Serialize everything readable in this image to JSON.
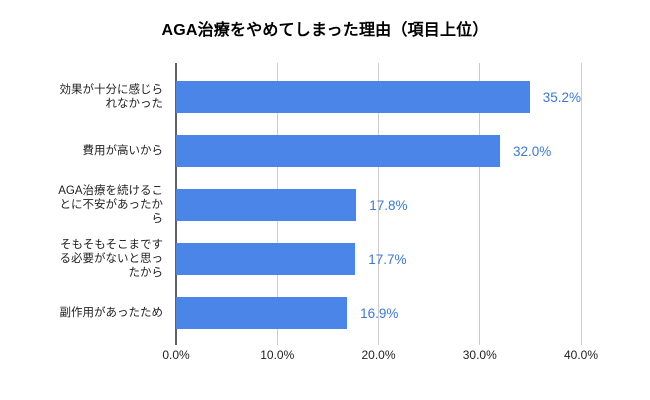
{
  "chart_data": {
    "type": "bar",
    "orientation": "horizontal",
    "title": "AGA治療をやめてしまった理由（項目上位）",
    "categories": [
      "効果が十分に感じられなかった",
      "費用が高いから",
      "AGA治療を続けることに不安があったから",
      "そもそもそこまでする必要がないと思ったから",
      "副作用があったため"
    ],
    "category_label_lines": [
      [
        "効果が十分に感じら",
        "れなかった"
      ],
      [
        "費用が高いから"
      ],
      [
        "AGA治療を続けるこ",
        "とに不安があったか",
        "ら"
      ],
      [
        "そもそもそこまです",
        "る必要がないと思っ",
        "たから"
      ],
      [
        "副作用があったため"
      ]
    ],
    "values": [
      35.2,
      32.0,
      17.8,
      17.7,
      16.9
    ],
    "value_labels": [
      "35.2%",
      "32.0%",
      "17.8%",
      "17.7%",
      "16.9%"
    ],
    "x_ticks": [
      "0.0%",
      "10.0%",
      "20.0%",
      "30.0%",
      "40.0%"
    ],
    "x_tick_values": [
      0,
      10,
      20,
      30,
      40
    ],
    "xlabel": "",
    "ylabel": "",
    "xlim": [
      0,
      40
    ],
    "grid": true,
    "legend": "none",
    "colors": {
      "bar": "#4b85e8",
      "value_label": "#3c78d8",
      "gridline": "#cccccc",
      "baseline": "#616161",
      "axis_text": "#1f1f1f",
      "category_text": "#1f1f1f",
      "title_text": "#000000",
      "background": "#ffffff"
    }
  }
}
